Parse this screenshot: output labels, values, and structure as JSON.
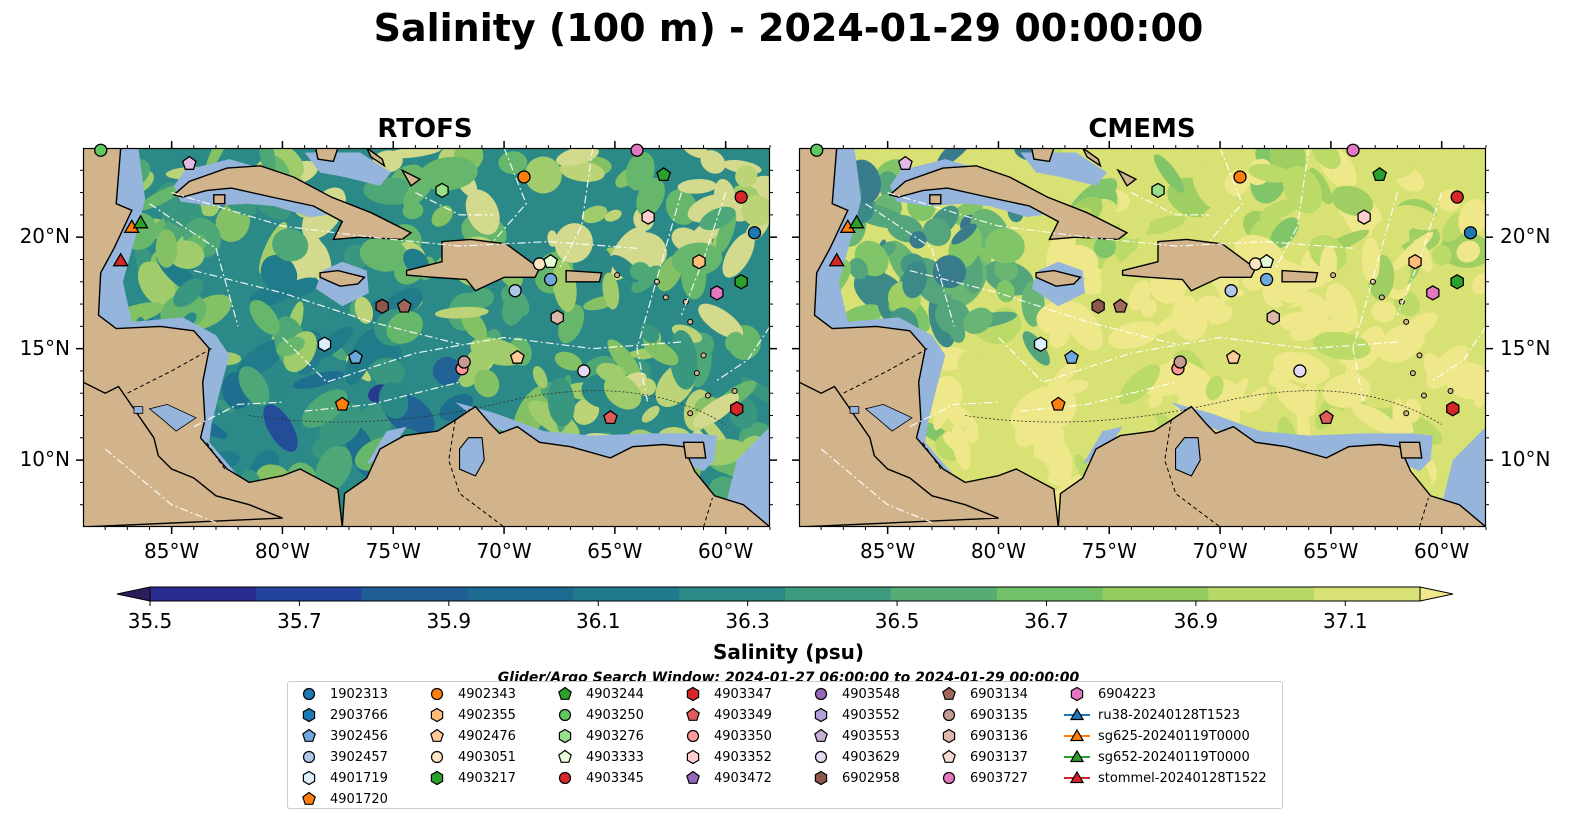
{
  "title": "Salinity (100 m) - 2024-01-29 00:00:00",
  "panels": [
    {
      "title": "RTOFS",
      "scheme": "rtofs"
    },
    {
      "title": "CMEMS",
      "scheme": "cmems"
    }
  ],
  "map_extent": {
    "lon": [
      -89,
      -58
    ],
    "lat": [
      7,
      24
    ]
  },
  "lon_ticks": [
    "85°W",
    "80°W",
    "75°W",
    "70°W",
    "65°W",
    "60°W"
  ],
  "lon_tick_values": [
    -85,
    -80,
    -75,
    -70,
    -65,
    -60
  ],
  "lat_ticks": [
    "20°N",
    "15°N",
    "10°N"
  ],
  "lat_tick_values": [
    20,
    15,
    10
  ],
  "colorbar": {
    "label": "Salinity (psu)",
    "ticks": [
      "35.5",
      "35.7",
      "35.9",
      "36.1",
      "36.3",
      "36.5",
      "36.7",
      "36.9",
      "37.1"
    ],
    "range": [
      35.5,
      37.2
    ],
    "colors": [
      "#2c1e5c",
      "#2a2b8e",
      "#24439a",
      "#1f5d96",
      "#1c6a90",
      "#1f7a8c",
      "#2b8a87",
      "#3d9a7e",
      "#55ad73",
      "#72c067",
      "#95cc5f",
      "#b8d966",
      "#d8e174",
      "#f2e98e"
    ]
  },
  "search_window": "Glider/Argo Search Window: 2024-01-27 06:00:00 to 2024-01-29 00:00:00",
  "legend": [
    {
      "label": "1902313",
      "color": "#1f77b4",
      "marker": "circle"
    },
    {
      "label": "2903766",
      "color": "#1f77b4",
      "marker": "hexagon"
    },
    {
      "label": "3902456",
      "color": "#6fa8dc",
      "marker": "pentagon"
    },
    {
      "label": "3902457",
      "color": "#aec7e8",
      "marker": "circle"
    },
    {
      "label": "4901719",
      "color": "#dbeefc",
      "marker": "hexagon"
    },
    {
      "label": "4901720",
      "color": "#ff7f0e",
      "marker": "pentagon"
    },
    {
      "label": "4902343",
      "color": "#ff7f0e",
      "marker": "circle"
    },
    {
      "label": "4902355",
      "color": "#ffbb78",
      "marker": "hexagon"
    },
    {
      "label": "4902476",
      "color": "#ffcc99",
      "marker": "pentagon"
    },
    {
      "label": "4903051",
      "color": "#ffe4c4",
      "marker": "circle"
    },
    {
      "label": "4903217",
      "color": "#2ca02c",
      "marker": "hexagon"
    },
    {
      "label": "4903244",
      "color": "#2ca02c",
      "marker": "pentagon"
    },
    {
      "label": "4903250",
      "color": "#5fc85f",
      "marker": "circle"
    },
    {
      "label": "4903276",
      "color": "#98df8a",
      "marker": "hexagon"
    },
    {
      "label": "4903333",
      "color": "#e6ffd9",
      "marker": "pentagon"
    },
    {
      "label": "4903345",
      "color": "#d62728",
      "marker": "circle"
    },
    {
      "label": "4903347",
      "color": "#d62728",
      "marker": "hexagon"
    },
    {
      "label": "4903349",
      "color": "#e05a5a",
      "marker": "pentagon"
    },
    {
      "label": "4903350",
      "color": "#ff9896",
      "marker": "circle"
    },
    {
      "label": "4903352",
      "color": "#ffcfcf",
      "marker": "hexagon"
    },
    {
      "label": "4903472",
      "color": "#9467bd",
      "marker": "pentagon"
    },
    {
      "label": "4903548",
      "color": "#9467bd",
      "marker": "circle"
    },
    {
      "label": "4903552",
      "color": "#b39ddb",
      "marker": "hexagon"
    },
    {
      "label": "4903553",
      "color": "#c5b0d5",
      "marker": "pentagon"
    },
    {
      "label": "4903629",
      "color": "#e4d9f2",
      "marker": "circle"
    },
    {
      "label": "6902958",
      "color": "#8c564b",
      "marker": "hexagon"
    },
    {
      "label": "6903134",
      "color": "#a0685c",
      "marker": "pentagon"
    },
    {
      "label": "6903135",
      "color": "#c49c94",
      "marker": "circle"
    },
    {
      "label": "6903136",
      "color": "#dbb8a8",
      "marker": "hexagon"
    },
    {
      "label": "6903137",
      "color": "#f3ddd0",
      "marker": "pentagon"
    },
    {
      "label": "6903727",
      "color": "#e377c2",
      "marker": "circle"
    },
    {
      "label": "6904223",
      "color": "#e377c2",
      "marker": "hexagon"
    },
    {
      "label": "ru38-20240128T1523",
      "color": "#1f77b4",
      "marker": "triangle-line"
    },
    {
      "label": "sg625-20240119T0000",
      "color": "#ff7f0e",
      "marker": "triangle-line"
    },
    {
      "label": "sg652-20240119T0000",
      "color": "#2ca02c",
      "marker": "triangle-line"
    },
    {
      "label": "stommel-20240128T1522",
      "color": "#d62728",
      "marker": "triangle-line"
    }
  ],
  "floats": [
    {
      "id": "1902313",
      "lon": -58.7,
      "lat": 20.2
    },
    {
      "id": "2903766",
      "lon": -75.5,
      "lat": 16.9,
      "color": "#8c564b"
    },
    {
      "id": "3902456",
      "lon": -76.7,
      "lat": 14.6
    },
    {
      "id": "3902457",
      "lon": -69.5,
      "lat": 17.6
    },
    {
      "id": "4901719",
      "lon": -78.1,
      "lat": 15.2
    },
    {
      "id": "4901720",
      "lon": -77.3,
      "lat": 12.5
    },
    {
      "id": "4902343",
      "lon": -69.1,
      "lat": 22.7
    },
    {
      "id": "4902355",
      "lon": -61.2,
      "lat": 18.9
    },
    {
      "id": "4902476",
      "lon": -69.4,
      "lat": 14.6
    },
    {
      "id": "4903051",
      "lon": -68.4,
      "lat": 18.8
    },
    {
      "id": "4903217",
      "lon": -59.3,
      "lat": 18.0
    },
    {
      "id": "4903244",
      "lon": -62.8,
      "lat": 22.8
    },
    {
      "id": "4903250",
      "lon": -88.2,
      "lat": 23.9
    },
    {
      "id": "4903276",
      "lon": -72.8,
      "lat": 22.1
    },
    {
      "id": "4903333",
      "lon": -67.9,
      "lat": 18.9
    },
    {
      "id": "4903345",
      "lon": -59.3,
      "lat": 21.8
    },
    {
      "id": "4903347",
      "lon": -59.5,
      "lat": 12.3
    },
    {
      "id": "4903349",
      "lon": -65.2,
      "lat": 11.9
    },
    {
      "id": "4903350",
      "lon": -71.9,
      "lat": 14.1
    },
    {
      "id": "4903352",
      "lon": -63.5,
      "lat": 20.9
    },
    {
      "id": "4903548",
      "lon": -67.9,
      "lat": 18.1,
      "color": "#6fa8dc"
    },
    {
      "id": "4903553",
      "lon": -84.2,
      "lat": 23.3,
      "color": "#e4b9e6"
    },
    {
      "id": "4903629",
      "lon": -66.4,
      "lat": 14.0
    },
    {
      "id": "6903134",
      "lon": -74.5,
      "lat": 16.9
    },
    {
      "id": "6903135",
      "lon": -71.8,
      "lat": 14.4
    },
    {
      "id": "6903136",
      "lon": -67.6,
      "lat": 16.4
    },
    {
      "id": "6903727",
      "lon": -64.0,
      "lat": 23.9
    },
    {
      "id": "6904223",
      "lon": -60.4,
      "lat": 17.5
    }
  ],
  "gliders": [
    {
      "id": "sg625-20240119T0000",
      "lon": -86.8,
      "lat": 20.4
    },
    {
      "id": "sg652-20240119T0000",
      "lon": -86.4,
      "lat": 20.6
    },
    {
      "id": "stommel-20240128T1522",
      "lon": -87.3,
      "lat": 18.9
    }
  ]
}
